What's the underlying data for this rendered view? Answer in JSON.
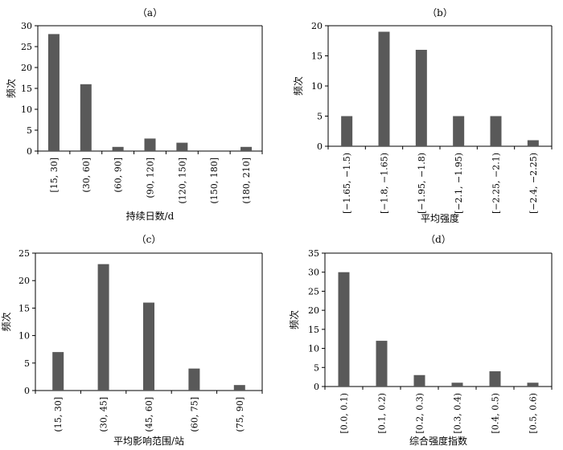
{
  "chart_data": [
    {
      "type": "bar",
      "title": "（a）",
      "xlabel": "持续日数/d",
      "ylabel": "频次",
      "ylim": [
        0,
        30
      ],
      "yticks": [
        0,
        5,
        10,
        15,
        20,
        25,
        30
      ],
      "categories": [
        "[15, 30]",
        "(30, 60]",
        "(60, 90]",
        "(90, 120]",
        "(120, 150]",
        "(150, 180]",
        "(180, 210]"
      ],
      "values": [
        28,
        16,
        1,
        3,
        2,
        0,
        1
      ],
      "grid": false,
      "color": "#595959"
    },
    {
      "type": "bar",
      "title": "（b）",
      "xlabel": "平均强度",
      "ylabel": "频次",
      "ylim": [
        0,
        20
      ],
      "yticks": [
        0,
        5,
        10,
        15,
        20
      ],
      "categories": [
        "[−1.65, −1.5)",
        "[−1.8, −1.65)",
        "[−1.95, −1.8)",
        "[−2.1, −1.95)",
        "[−2.25, −2.1)",
        "[−2.4, −2.25)"
      ],
      "values": [
        5,
        19,
        16,
        5,
        5,
        1
      ],
      "grid": false,
      "color": "#595959"
    },
    {
      "type": "bar",
      "title": "（c）",
      "xlabel": "平均影响范围/站",
      "ylabel": "频次",
      "ylim": [
        0,
        25
      ],
      "yticks": [
        0,
        5,
        10,
        15,
        20,
        25
      ],
      "categories": [
        "(15, 30]",
        "(30, 45]",
        "(45, 60]",
        "(60, 75]",
        "(75, 90]"
      ],
      "values": [
        7,
        23,
        16,
        4,
        1
      ],
      "grid": false,
      "color": "#595959"
    },
    {
      "type": "bar",
      "title": "（d）",
      "xlabel": "综合强度指数",
      "ylabel": "频次",
      "ylim": [
        0,
        35
      ],
      "yticks": [
        0,
        5,
        10,
        15,
        20,
        25,
        30,
        35
      ],
      "categories": [
        "[0.0, 0.1)",
        "[0.1, 0.2)",
        "[0.2, 0.3)",
        "[0.3, 0.4)",
        "[0.4, 0.5)",
        "[0.5, 0.6)"
      ],
      "values": [
        30,
        12,
        3,
        1,
        4,
        1
      ],
      "grid": false,
      "color": "#595959"
    }
  ]
}
